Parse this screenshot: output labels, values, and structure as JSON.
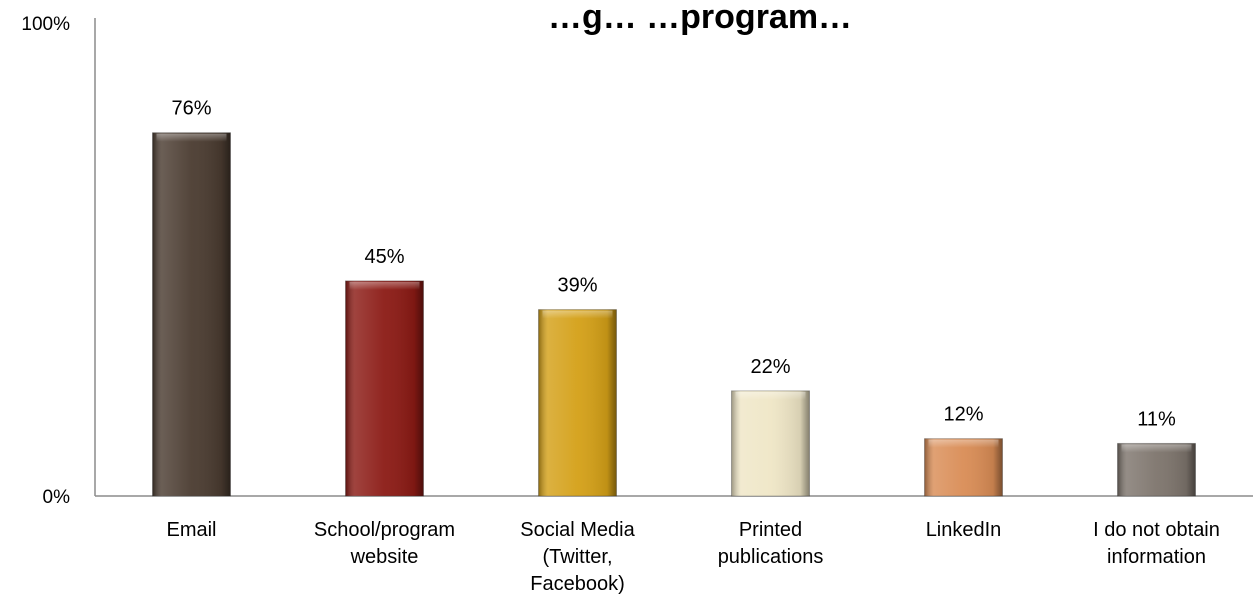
{
  "chart_data": {
    "type": "bar",
    "title": "…g… …program…",
    "xlabel": "",
    "ylabel": "",
    "ylim": [
      0,
      100
    ],
    "y_ticks": [
      "0%",
      "100%"
    ],
    "grid": false,
    "legend": "none",
    "categories": [
      [
        "Email"
      ],
      [
        "School/program",
        "website"
      ],
      [
        "Social Media",
        "(Twitter,",
        "Facebook)"
      ],
      [
        "Printed",
        "publications"
      ],
      [
        "LinkedIn"
      ],
      [
        "I do not obtain",
        "information"
      ]
    ],
    "values": [
      76,
      45,
      39,
      22,
      12,
      11
    ],
    "data_labels": [
      "76%",
      "45%",
      "39%",
      "22%",
      "12%",
      "11%"
    ],
    "colors": [
      "#4a3b30",
      "#8b1a14",
      "#d4a017",
      "#efe6c6",
      "#d98c55",
      "#7d746c"
    ]
  }
}
